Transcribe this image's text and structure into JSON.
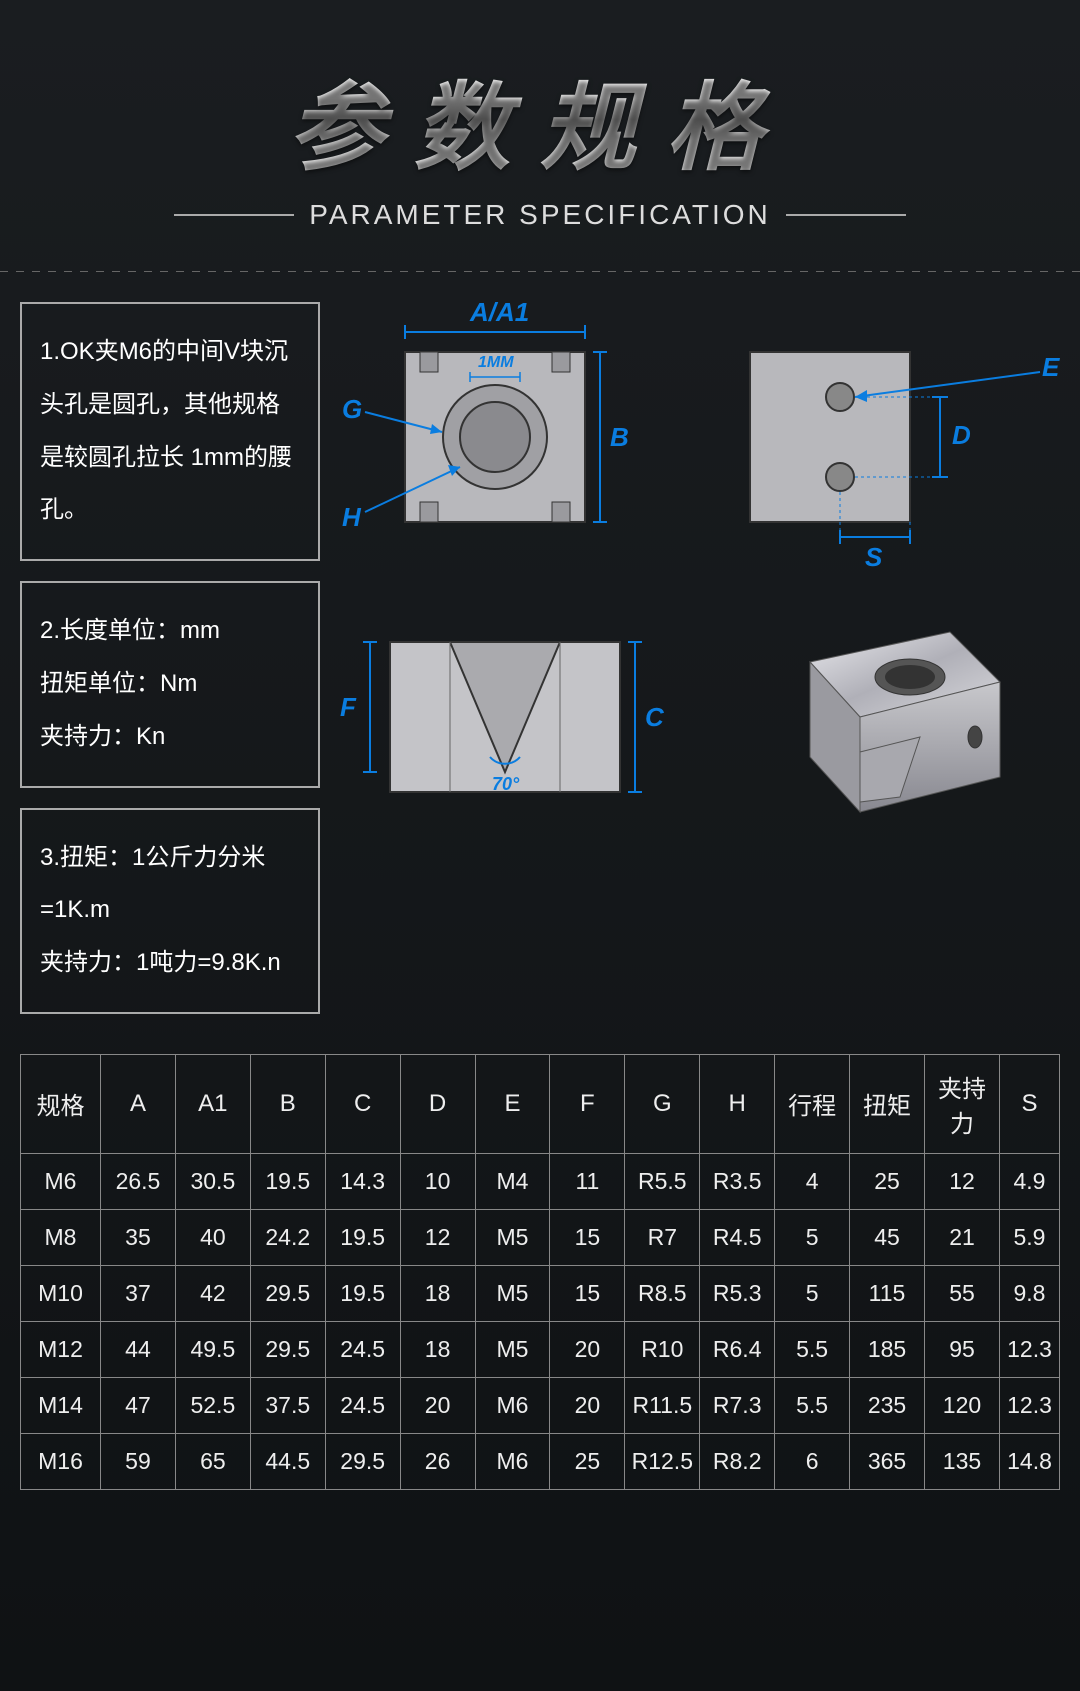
{
  "header": {
    "title": "参数规格",
    "subtitle": "PARAMETER SPECIFICATION"
  },
  "notes": [
    "1.OK夹M6的中间V块沉头孔是圆孔，其他规格是较圆孔拉长 1mm的腰孔。",
    "2.长度单位：mm\n扭矩单位：Nm\n夹持力：Kn",
    "3.扭矩：1公斤力分米=1K.m\n夹持力：1吨力=9.8K.n"
  ],
  "diagram_labels": {
    "top": "A/A1",
    "inner": "1MM",
    "G": "G",
    "H": "H",
    "B": "B",
    "E": "E",
    "D": "D",
    "S": "S",
    "F": "F",
    "C": "C",
    "angle": "70°"
  },
  "table": {
    "columns": [
      "规格",
      "A",
      "A1",
      "B",
      "C",
      "D",
      "E",
      "F",
      "G",
      "H",
      "行程",
      "扭矩",
      "夹持力",
      "S"
    ],
    "rows": [
      [
        "M6",
        "26.5",
        "30.5",
        "19.5",
        "14.3",
        "10",
        "M4",
        "11",
        "R5.5",
        "R3.5",
        "4",
        "25",
        "12",
        "4.9"
      ],
      [
        "M8",
        "35",
        "40",
        "24.2",
        "19.5",
        "12",
        "M5",
        "15",
        "R7",
        "R4.5",
        "5",
        "45",
        "21",
        "5.9"
      ],
      [
        "M10",
        "37",
        "42",
        "29.5",
        "19.5",
        "18",
        "M5",
        "15",
        "R8.5",
        "R5.3",
        "5",
        "115",
        "55",
        "9.8"
      ],
      [
        "M12",
        "44",
        "49.5",
        "29.5",
        "24.5",
        "18",
        "M5",
        "20",
        "R10",
        "R6.4",
        "5.5",
        "185",
        "95",
        "12.3"
      ],
      [
        "M14",
        "47",
        "52.5",
        "37.5",
        "24.5",
        "20",
        "M6",
        "20",
        "R11.5",
        "R7.3",
        "5.5",
        "235",
        "120",
        "12.3"
      ],
      [
        "M16",
        "59",
        "65",
        "44.5",
        "29.5",
        "26",
        "M6",
        "25",
        "R12.5",
        "R8.2",
        "6",
        "365",
        "135",
        "14.8"
      ]
    ]
  },
  "colors": {
    "accent": "#0a7de0",
    "border": "#888888",
    "text": "#eeeeee",
    "bg_dark": "#121518"
  }
}
